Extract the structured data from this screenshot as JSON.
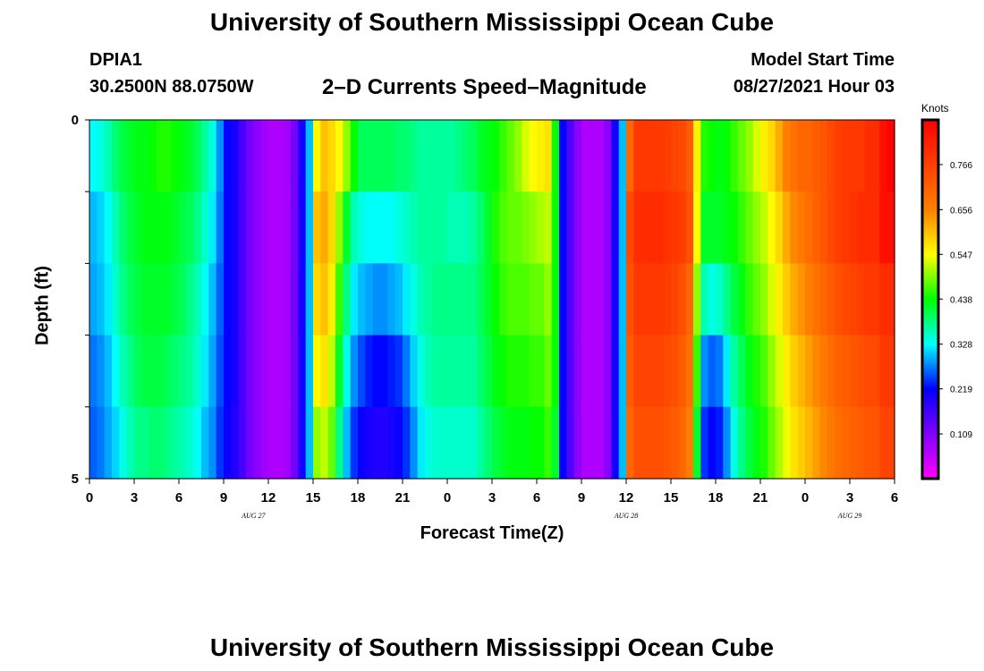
{
  "header": {
    "title": "University of Southern Mississippi Ocean Cube",
    "station": "DPIA1",
    "coordinates": "30.2500N  88.0750W",
    "subtitle": "2–D Currents Speed–Magnitude",
    "model_start_label": "Model Start Time",
    "model_start_value": "08/27/2021 Hour 03"
  },
  "footer": {
    "title": "University of Southern Mississippi Ocean Cube"
  },
  "chart_data": {
    "type": "heatmap",
    "title": "2-D Currents Speed-Magnitude",
    "xlabel": "Forecast Time(Z)",
    "ylabel": "Depth (ft)",
    "x_ticks": [
      "0",
      "3",
      "6",
      "9",
      "12",
      "15",
      "18",
      "21",
      "0",
      "3",
      "6",
      "9",
      "12",
      "15",
      "18",
      "21",
      "0",
      "3",
      "6"
    ],
    "x_range_hours": [
      0,
      54
    ],
    "day_labels": [
      {
        "label": "AUG  27",
        "hour": 11
      },
      {
        "label": "AUG  28",
        "hour": 36
      },
      {
        "label": "AUG  29",
        "hour": 51
      }
    ],
    "y_ticks": [
      "0",
      "5"
    ],
    "y_range": [
      0,
      5
    ],
    "depth_levels": [
      0,
      1,
      2,
      3,
      4,
      5
    ],
    "colorbar": {
      "units": "Knots",
      "ticks": [
        "0.766",
        "0.656",
        "0.547",
        "0.438",
        "0.328",
        "0.219",
        "0.109"
      ],
      "range": [
        0.0,
        0.875
      ]
    },
    "hours": [
      0,
      0.5,
      1,
      1.5,
      2,
      2.5,
      3,
      3.5,
      4,
      4.5,
      5,
      5.5,
      6,
      6.5,
      7,
      7.5,
      8,
      8.5,
      9,
      9.5,
      10,
      10.5,
      11,
      11.5,
      12,
      12.5,
      13,
      13.5,
      14,
      14.5,
      15,
      15.5,
      16,
      16.5,
      17,
      17.5,
      18,
      18.5,
      19,
      19.5,
      20,
      20.5,
      21,
      21.5,
      22,
      22.5,
      23,
      23.5,
      24,
      24.5,
      25,
      25.5,
      26,
      26.5,
      27,
      27.5,
      28,
      28.5,
      29,
      29.5,
      30,
      30.5,
      31,
      31.5,
      32,
      32.5,
      33,
      33.5,
      34,
      34.5,
      35,
      35.5,
      36,
      36.5,
      37,
      37.5,
      38,
      38.5,
      39,
      39.5,
      40,
      40.5,
      41,
      41.5,
      42,
      42.5,
      43,
      43.5,
      44,
      44.5,
      45,
      45.5,
      46,
      46.5,
      47,
      47.5,
      48,
      48.5,
      49,
      49.5,
      50,
      50.5,
      51,
      51.5,
      52,
      52.5,
      53,
      53.5
    ],
    "values": [
      [
        0.33,
        0.34,
        0.36,
        0.39,
        0.41,
        0.42,
        0.43,
        0.43,
        0.44,
        0.45,
        0.45,
        0.44,
        0.43,
        0.42,
        0.4,
        0.37,
        0.34,
        0.28,
        0.22,
        0.2,
        0.16,
        0.12,
        0.1,
        0.08,
        0.07,
        0.07,
        0.08,
        0.12,
        0.2,
        0.3,
        0.55,
        0.6,
        0.58,
        0.55,
        0.5,
        0.44,
        0.4,
        0.4,
        0.4,
        0.4,
        0.4,
        0.39,
        0.39,
        0.38,
        0.37,
        0.37,
        0.37,
        0.37,
        0.37,
        0.38,
        0.39,
        0.4,
        0.42,
        0.43,
        0.44,
        0.46,
        0.48,
        0.5,
        0.53,
        0.55,
        0.56,
        0.57,
        0.44,
        0.22,
        0.15,
        0.1,
        0.07,
        0.07,
        0.07,
        0.1,
        0.2,
        0.3,
        0.7,
        0.78,
        0.78,
        0.78,
        0.78,
        0.77,
        0.76,
        0.75,
        0.72,
        0.56,
        0.45,
        0.44,
        0.43,
        0.44,
        0.46,
        0.48,
        0.5,
        0.53,
        0.56,
        0.58,
        0.62,
        0.66,
        0.68,
        0.7,
        0.7,
        0.72,
        0.73,
        0.75,
        0.77,
        0.78,
        0.78,
        0.78,
        0.8,
        0.8,
        0.85,
        0.9
      ],
      [
        0.3,
        0.31,
        0.33,
        0.36,
        0.39,
        0.41,
        0.42,
        0.43,
        0.43,
        0.43,
        0.43,
        0.42,
        0.41,
        0.4,
        0.38,
        0.35,
        0.32,
        0.27,
        0.22,
        0.2,
        0.16,
        0.12,
        0.1,
        0.08,
        0.07,
        0.07,
        0.08,
        0.12,
        0.2,
        0.3,
        0.6,
        0.62,
        0.58,
        0.5,
        0.42,
        0.36,
        0.34,
        0.33,
        0.33,
        0.33,
        0.33,
        0.34,
        0.35,
        0.36,
        0.37,
        0.37,
        0.37,
        0.37,
        0.36,
        0.36,
        0.36,
        0.37,
        0.39,
        0.42,
        0.45,
        0.47,
        0.48,
        0.48,
        0.49,
        0.5,
        0.51,
        0.52,
        0.44,
        0.22,
        0.15,
        0.1,
        0.07,
        0.07,
        0.07,
        0.1,
        0.2,
        0.3,
        0.75,
        0.8,
        0.8,
        0.8,
        0.8,
        0.79,
        0.78,
        0.77,
        0.74,
        0.55,
        0.42,
        0.42,
        0.42,
        0.43,
        0.44,
        0.46,
        0.48,
        0.5,
        0.52,
        0.55,
        0.58,
        0.62,
        0.65,
        0.67,
        0.69,
        0.71,
        0.73,
        0.75,
        0.77,
        0.78,
        0.79,
        0.8,
        0.8,
        0.8,
        0.85,
        0.85
      ],
      [
        0.29,
        0.3,
        0.32,
        0.35,
        0.38,
        0.4,
        0.41,
        0.42,
        0.42,
        0.42,
        0.42,
        0.41,
        0.4,
        0.38,
        0.36,
        0.33,
        0.3,
        0.26,
        0.22,
        0.2,
        0.16,
        0.12,
        0.1,
        0.08,
        0.07,
        0.07,
        0.08,
        0.12,
        0.2,
        0.3,
        0.58,
        0.6,
        0.56,
        0.46,
        0.38,
        0.32,
        0.3,
        0.29,
        0.28,
        0.28,
        0.29,
        0.3,
        0.32,
        0.34,
        0.36,
        0.37,
        0.38,
        0.38,
        0.38,
        0.38,
        0.38,
        0.38,
        0.4,
        0.42,
        0.44,
        0.46,
        0.47,
        0.47,
        0.47,
        0.48,
        0.48,
        0.5,
        0.44,
        0.22,
        0.15,
        0.1,
        0.07,
        0.07,
        0.07,
        0.1,
        0.2,
        0.3,
        0.74,
        0.78,
        0.78,
        0.78,
        0.78,
        0.77,
        0.76,
        0.74,
        0.7,
        0.5,
        0.36,
        0.34,
        0.35,
        0.38,
        0.41,
        0.43,
        0.46,
        0.48,
        0.5,
        0.53,
        0.56,
        0.59,
        0.62,
        0.64,
        0.66,
        0.68,
        0.7,
        0.72,
        0.74,
        0.75,
        0.76,
        0.77,
        0.78,
        0.78,
        0.8,
        0.8
      ],
      [
        0.27,
        0.28,
        0.3,
        0.33,
        0.36,
        0.38,
        0.4,
        0.41,
        0.41,
        0.41,
        0.4,
        0.39,
        0.38,
        0.37,
        0.35,
        0.32,
        0.29,
        0.25,
        0.22,
        0.2,
        0.16,
        0.12,
        0.1,
        0.08,
        0.07,
        0.07,
        0.08,
        0.12,
        0.2,
        0.3,
        0.55,
        0.57,
        0.52,
        0.42,
        0.34,
        0.28,
        0.25,
        0.23,
        0.22,
        0.22,
        0.23,
        0.24,
        0.27,
        0.31,
        0.34,
        0.36,
        0.37,
        0.37,
        0.37,
        0.37,
        0.37,
        0.37,
        0.39,
        0.41,
        0.43,
        0.44,
        0.45,
        0.45,
        0.45,
        0.46,
        0.46,
        0.48,
        0.44,
        0.22,
        0.15,
        0.1,
        0.07,
        0.07,
        0.07,
        0.1,
        0.2,
        0.3,
        0.72,
        0.76,
        0.76,
        0.76,
        0.76,
        0.75,
        0.74,
        0.72,
        0.68,
        0.46,
        0.28,
        0.26,
        0.27,
        0.32,
        0.37,
        0.4,
        0.43,
        0.45,
        0.47,
        0.5,
        0.53,
        0.56,
        0.59,
        0.61,
        0.63,
        0.65,
        0.67,
        0.69,
        0.71,
        0.72,
        0.73,
        0.74,
        0.75,
        0.75,
        0.78,
        0.78
      ],
      [
        0.26,
        0.27,
        0.29,
        0.31,
        0.34,
        0.36,
        0.38,
        0.38,
        0.39,
        0.39,
        0.38,
        0.37,
        0.36,
        0.35,
        0.33,
        0.3,
        0.28,
        0.24,
        0.21,
        0.19,
        0.16,
        0.12,
        0.1,
        0.08,
        0.07,
        0.07,
        0.08,
        0.12,
        0.2,
        0.3,
        0.5,
        0.52,
        0.48,
        0.38,
        0.3,
        0.24,
        0.21,
        0.2,
        0.19,
        0.19,
        0.2,
        0.21,
        0.24,
        0.28,
        0.32,
        0.34,
        0.35,
        0.35,
        0.35,
        0.35,
        0.35,
        0.35,
        0.37,
        0.39,
        0.41,
        0.42,
        0.43,
        0.43,
        0.43,
        0.44,
        0.44,
        0.46,
        0.42,
        0.22,
        0.15,
        0.1,
        0.07,
        0.07,
        0.07,
        0.1,
        0.2,
        0.3,
        0.7,
        0.74,
        0.74,
        0.74,
        0.74,
        0.73,
        0.72,
        0.7,
        0.66,
        0.42,
        0.24,
        0.22,
        0.23,
        0.28,
        0.34,
        0.38,
        0.41,
        0.43,
        0.45,
        0.48,
        0.51,
        0.54,
        0.57,
        0.59,
        0.61,
        0.63,
        0.65,
        0.67,
        0.69,
        0.7,
        0.71,
        0.72,
        0.73,
        0.73,
        0.76,
        0.76
      ],
      [
        0.24,
        0.25,
        0.27,
        0.29,
        0.31,
        0.33,
        0.34,
        0.35,
        0.35,
        0.35,
        0.35,
        0.34,
        0.33,
        0.32,
        0.3,
        0.28,
        0.26,
        0.23,
        0.2,
        0.18,
        0.15,
        0.12,
        0.1,
        0.08,
        0.07,
        0.07,
        0.08,
        0.12,
        0.2,
        0.3,
        0.44,
        0.46,
        0.42,
        0.34,
        0.26,
        0.2,
        0.18,
        0.17,
        0.16,
        0.16,
        0.17,
        0.18,
        0.2,
        0.24,
        0.28,
        0.3,
        0.32,
        0.32,
        0.33,
        0.33,
        0.33,
        0.33,
        0.35,
        0.37,
        0.38,
        0.39,
        0.4,
        0.4,
        0.4,
        0.4,
        0.41,
        0.42,
        0.4,
        0.22,
        0.15,
        0.1,
        0.07,
        0.07,
        0.07,
        0.1,
        0.2,
        0.3,
        0.66,
        0.7,
        0.7,
        0.7,
        0.7,
        0.69,
        0.68,
        0.66,
        0.62,
        0.38,
        0.2,
        0.18,
        0.19,
        0.24,
        0.3,
        0.35,
        0.38,
        0.4,
        0.42,
        0.45,
        0.48,
        0.51,
        0.54,
        0.56,
        0.58,
        0.6,
        0.62,
        0.64,
        0.66,
        0.67,
        0.68,
        0.69,
        0.7,
        0.7,
        0.72,
        0.72
      ]
    ]
  }
}
